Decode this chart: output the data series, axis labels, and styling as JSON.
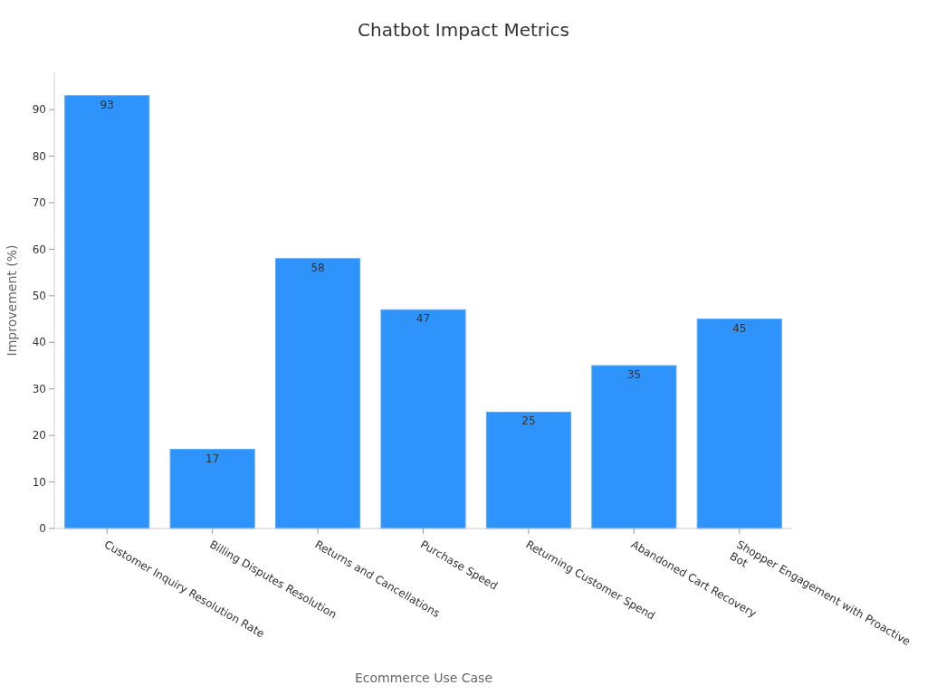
{
  "chart_data": {
    "type": "bar",
    "title": "Chatbot Impact Metrics",
    "xlabel": "Ecommerce Use Case",
    "ylabel": "Improvement (%)",
    "categories": [
      "Customer Inquiry Resolution Rate",
      "Billing Disputes Resolution",
      "Returns and Cancellations",
      "Purchase Speed",
      "Returning Customer Spend",
      "Abandoned Cart Recovery",
      "Shopper Engagement with Proactive Bot"
    ],
    "values": [
      93,
      17,
      58,
      47,
      25,
      35,
      45
    ],
    "color": "#2e93fa",
    "ylim": [
      0,
      98
    ],
    "yticks": [
      0,
      10,
      20,
      30,
      40,
      50,
      60,
      70,
      80,
      90
    ],
    "grid": false,
    "data_labels": true
  }
}
